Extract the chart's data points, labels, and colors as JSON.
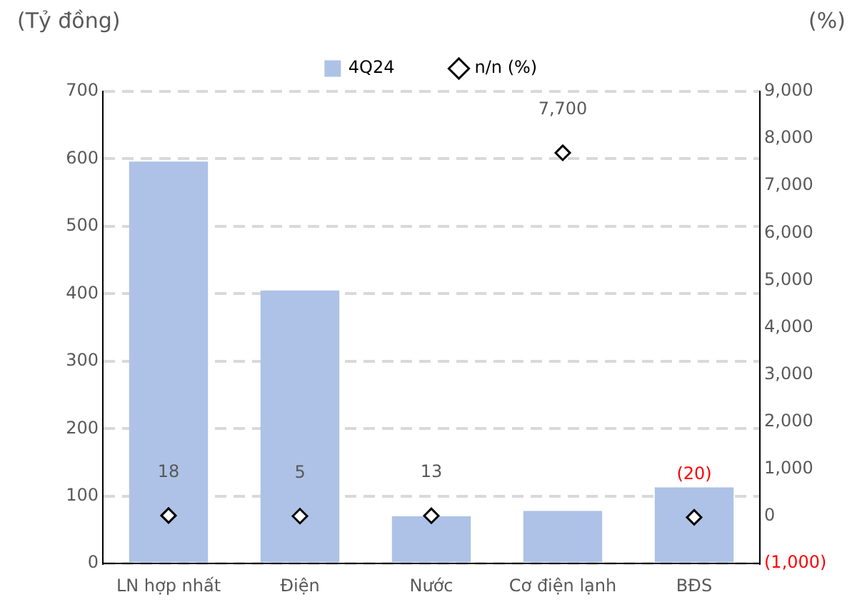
{
  "chart_data": {
    "type": "bar",
    "ylabel": "(Tỷ đồng)",
    "y2label": "(%)",
    "categories": [
      "LN hợp nhất",
      "Điện",
      "Nước",
      "Cơ điện lạnh",
      "BĐS"
    ],
    "series": [
      {
        "name": "4Q24",
        "color": "#adc2e6",
        "values": [
          596,
          405,
          70,
          78,
          113
        ]
      },
      {
        "name": "n/n (%)",
        "type": "scatter",
        "axis": "y2",
        "color": "#000000",
        "marker": "diamond",
        "x": [
          "LN hợp nhất",
          "Điện",
          "Nước",
          "Cơ điện lạnh",
          "BĐS"
        ],
        "values": [
          18,
          5,
          13,
          7700,
          -20
        ],
        "value_labels": [
          "18",
          "5",
          "13",
          "7,700",
          "(20)"
        ]
      }
    ],
    "ylim": [
      0,
      700
    ],
    "yticks": [
      0,
      100,
      200,
      300,
      400,
      500,
      600,
      700
    ],
    "y2lim": [
      -1000,
      9000
    ],
    "y2ticks": [
      {
        "value": -1000,
        "label": "(1,000)"
      },
      0,
      {
        "value": 1000,
        "label": "1,000"
      },
      {
        "value": 2000,
        "label": "2,000"
      },
      {
        "value": 3000,
        "label": "3,000"
      },
      {
        "value": 4000,
        "label": "4,000"
      },
      {
        "value": 5000,
        "label": "5,000"
      },
      {
        "value": 6000,
        "label": "6,000"
      },
      {
        "value": 7000,
        "label": "7,000"
      },
      {
        "value": 8000,
        "label": "8,000"
      },
      {
        "value": 9000,
        "label": "9,000"
      }
    ],
    "grid": "y",
    "legend": "top"
  }
}
